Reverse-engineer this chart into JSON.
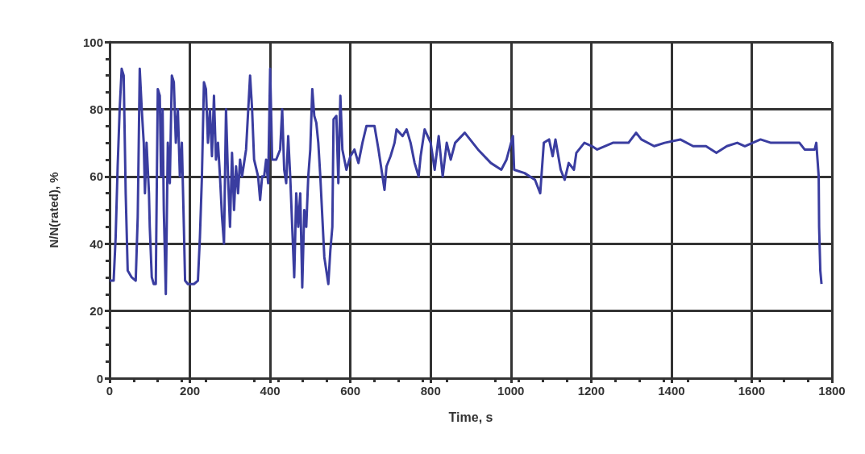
{
  "chart_data": {
    "type": "line",
    "xlabel": "Time, s",
    "ylabel": "N/N(rated), %",
    "xlim": [
      0,
      1800
    ],
    "xticks": [
      0,
      200,
      400,
      600,
      800,
      1000,
      1200,
      1400,
      1600,
      1800
    ],
    "ylim": [
      0,
      100
    ],
    "yticks": [
      0,
      20,
      40,
      60,
      80,
      100
    ],
    "grid": true,
    "marker": "none",
    "line_style": "solid",
    "series": [
      {
        "color": "#3a3da0",
        "x": [
          0,
          10,
          15,
          20,
          25,
          30,
          35,
          40,
          45,
          55,
          65,
          70,
          72,
          75,
          80,
          85,
          88,
          92,
          98,
          100,
          105,
          110,
          115,
          120,
          125,
          128,
          132,
          135,
          140,
          145,
          150,
          155,
          160,
          165,
          170,
          175,
          180,
          185,
          188,
          195,
          210,
          220,
          225,
          230,
          235,
          240,
          245,
          250,
          255,
          260,
          265,
          270,
          275,
          280,
          285,
          290,
          295,
          300,
          305,
          310,
          315,
          320,
          325,
          330,
          340,
          350,
          355,
          360,
          370,
          375,
          380,
          385,
          390,
          395,
          400,
          405,
          415,
          425,
          430,
          435,
          440,
          445,
          450,
          455,
          460,
          465,
          470,
          475,
          480,
          485,
          490,
          495,
          500,
          505,
          510,
          515,
          520,
          525,
          530,
          535,
          540,
          545,
          550,
          555,
          558,
          565,
          570,
          575,
          580,
          585,
          590,
          600,
          610,
          620,
          630,
          640,
          660,
          670,
          680,
          685,
          690,
          700,
          710,
          715,
          730,
          740,
          750,
          760,
          770,
          775,
          785,
          800,
          810,
          820,
          830,
          840,
          850,
          861,
          885,
          918,
          950,
          976,
          989,
          1005,
          1008,
          1034,
          1060,
          1073,
          1082,
          1095,
          1104,
          1111,
          1124,
          1134,
          1144,
          1157,
          1163,
          1183,
          1202,
          1215,
          1254,
          1293,
          1312,
          1325,
          1357,
          1383,
          1422,
          1454,
          1486,
          1512,
          1538,
          1564,
          1583,
          1622,
          1648,
          1693,
          1719,
          1732,
          1757,
          1761,
          1764,
          1767,
          1768,
          1771,
          1774
        ],
        "values": [
          29,
          29,
          42,
          63,
          80,
          92,
          90,
          55,
          32,
          30,
          29,
          48,
          65,
          92,
          80,
          70,
          55,
          70,
          55,
          45,
          30,
          28,
          28,
          86,
          84,
          60,
          80,
          50,
          25,
          70,
          58,
          90,
          88,
          70,
          80,
          60,
          70,
          45,
          29,
          28,
          28,
          29,
          42,
          60,
          88,
          86,
          70,
          80,
          66,
          84,
          65,
          70,
          60,
          48,
          40,
          80,
          60,
          45,
          67,
          50,
          63,
          55,
          65,
          60,
          68,
          90,
          80,
          65,
          60,
          53,
          60,
          60,
          65,
          58,
          92,
          65,
          65,
          68,
          80,
          62,
          58,
          72,
          60,
          45,
          30,
          55,
          45,
          55,
          27,
          50,
          45,
          60,
          68,
          86,
          78,
          76,
          70,
          60,
          48,
          36,
          32,
          28,
          38,
          45,
          77,
          78,
          58,
          84,
          68,
          65,
          62,
          66,
          68,
          64,
          70,
          75,
          75,
          68,
          60,
          56,
          63,
          66,
          70,
          74,
          72,
          74,
          70,
          64,
          60,
          66,
          74,
          70,
          62,
          72,
          60,
          70,
          65,
          70,
          73,
          68,
          64,
          62,
          65,
          72,
          62,
          61,
          59,
          55,
          70,
          71,
          66,
          71,
          62,
          59,
          64,
          62,
          67,
          70,
          69,
          68,
          70,
          70,
          73,
          71,
          69,
          70,
          71,
          69,
          69,
          67,
          69,
          70,
          69,
          71,
          70,
          70,
          70,
          68,
          68,
          70,
          65,
          60,
          45,
          32,
          28
        ]
      }
    ]
  }
}
